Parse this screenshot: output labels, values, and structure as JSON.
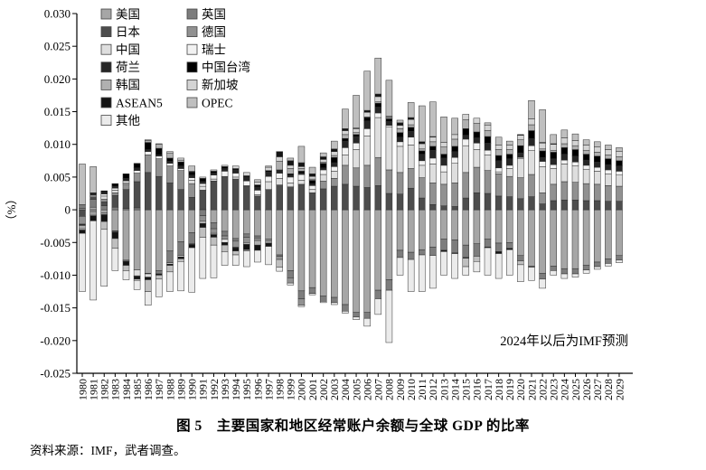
{
  "figure": {
    "title": "图 5　主要国家和地区经常账户余额与全球 GDP 的比率",
    "source": "资料来源：IMF，武者调查。"
  },
  "chart_data": {
    "type": "bar",
    "stacked": true,
    "title": "图 5　主要国家和地区经常账户余额与全球 GDP 的比率",
    "xlabel": "",
    "ylabel": "（%）",
    "ylim": [
      -0.025,
      0.03
    ],
    "ytick_labels": [
      "0.030",
      "0.025",
      "0.020",
      "0.015",
      "0.010",
      "0.005",
      "0",
      "-0.005",
      "-0.010",
      "-0.015",
      "-0.020",
      "-0.025"
    ],
    "grid": false,
    "legend_position": "upper-left two-column",
    "annotation": "2024年以后为IMF预测",
    "unit": "ratio of current account balance to world GDP",
    "value_scale": 0.0001,
    "x": [
      "1980",
      "1981",
      "1982",
      "1983",
      "1984",
      "1985",
      "1986",
      "1987",
      "1988",
      "1989",
      "1990",
      "1991",
      "1992",
      "1993",
      "1994",
      "1995",
      "1996",
      "1997",
      "1998",
      "1999",
      "2000",
      "2001",
      "2002",
      "2003",
      "2004",
      "2005",
      "2006",
      "2007",
      "2008",
      "2009",
      "2010",
      "2011",
      "2012",
      "2013",
      "2014",
      "2015",
      "2016",
      "2017",
      "2018",
      "2019",
      "2020",
      "2021",
      "2022",
      "2023",
      "2024",
      "2025",
      "2026",
      "2027",
      "2028",
      "2029"
    ],
    "series": [
      {
        "name": "美国",
        "color": "#a6a6a6",
        "values": [
          2,
          4,
          -5,
          -32,
          -77,
          -92,
          -97,
          -93,
          -63,
          -49,
          -35,
          1,
          -20,
          -33,
          -44,
          -37,
          -40,
          -45,
          -69,
          -93,
          -124,
          -119,
          -132,
          -134,
          -145,
          -157,
          -157,
          -123,
          -107,
          -62,
          -65,
          -61,
          -57,
          -45,
          -46,
          -54,
          -52,
          -45,
          -51,
          -50,
          -70,
          -86,
          -97,
          -86,
          -90,
          -90,
          -85,
          -80,
          -75,
          -70
        ]
      },
      {
        "name": "英国",
        "color": "#7d7d7d",
        "values": [
          6,
          12,
          6,
          4,
          2,
          3,
          -1,
          -5,
          -18,
          -21,
          -17,
          -9,
          -9,
          -7,
          -4,
          -5,
          -3,
          0,
          -2,
          -11,
          -12,
          -9,
          -8,
          -8,
          -10,
          -7,
          -9,
          -13,
          -16,
          -11,
          -11,
          -8,
          -13,
          -17,
          -20,
          -19,
          -19,
          -12,
          -13,
          -9,
          -8,
          -2,
          -9,
          -7,
          -8,
          -8,
          -7,
          -7,
          -7,
          -7
        ]
      },
      {
        "name": "日本",
        "color": "#4d4d4d",
        "values": [
          -10,
          4,
          6,
          18,
          29,
          40,
          57,
          51,
          41,
          31,
          19,
          29,
          44,
          51,
          47,
          36,
          21,
          31,
          38,
          35,
          39,
          26,
          32,
          36,
          39,
          36,
          34,
          37,
          25,
          24,
          33,
          18,
          8,
          6,
          5,
          18,
          26,
          25,
          21,
          20,
          17,
          20,
          9,
          14,
          15,
          15,
          14,
          14,
          13,
          13
        ]
      },
      {
        "name": "德国",
        "color": "#919191",
        "values": [
          -12,
          -3,
          4,
          4,
          8,
          13,
          27,
          27,
          26,
          29,
          21,
          -8,
          -7,
          -5,
          -9,
          -8,
          -4,
          -3,
          -5,
          -8,
          -10,
          0,
          12,
          12,
          29,
          28,
          34,
          43,
          36,
          33,
          30,
          31,
          33,
          33,
          36,
          39,
          39,
          35,
          34,
          31,
          32,
          34,
          17,
          25,
          28,
          27,
          26,
          25,
          24,
          23
        ]
      },
      {
        "name": "中国",
        "color": "#dedede",
        "values": [
          0,
          0,
          5,
          4,
          2,
          -9,
          -5,
          0,
          -2,
          -2,
          5,
          6,
          3,
          -5,
          3,
          1,
          2,
          12,
          10,
          6,
          6,
          5,
          10,
          11,
          16,
          28,
          45,
          61,
          66,
          40,
          36,
          19,
          29,
          19,
          30,
          41,
          27,
          24,
          3,
          12,
          29,
          37,
          40,
          24,
          27,
          25,
          22,
          20,
          18,
          17
        ]
      },
      {
        "name": "瑞士",
        "color": "#f2f2f2",
        "values": [
          0,
          2,
          3,
          3,
          3,
          4,
          5,
          4,
          4,
          3,
          4,
          4,
          6,
          8,
          6,
          7,
          7,
          8,
          8,
          9,
          9,
          6,
          7,
          7,
          11,
          10,
          11,
          7,
          2,
          7,
          12,
          7,
          9,
          10,
          9,
          10,
          10,
          7,
          6,
          5,
          2,
          7,
          8,
          6,
          6,
          6,
          6,
          6,
          6,
          6
        ]
      },
      {
        "name": "荷兰",
        "color": "#262626",
        "values": [
          -1,
          3,
          3,
          3,
          4,
          4,
          3,
          2,
          3,
          4,
          4,
          3,
          3,
          4,
          5,
          6,
          5,
          7,
          4,
          3,
          2,
          3,
          3,
          6,
          10,
          10,
          12,
          9,
          6,
          7,
          9,
          10,
          12,
          11,
          9,
          6,
          8,
          11,
          11,
          10,
          7,
          11,
          6,
          9,
          9,
          9,
          8,
          8,
          8,
          8
        ]
      },
      {
        "name": "中国台湾",
        "color": "#000000",
        "values": [
          -1,
          1,
          2,
          4,
          7,
          7,
          11,
          10,
          5,
          6,
          5,
          5,
          3,
          3,
          2,
          2,
          3,
          2,
          1,
          2,
          3,
          5,
          7,
          8,
          4,
          3,
          5,
          6,
          4,
          7,
          6,
          5,
          6,
          6,
          8,
          10,
          9,
          10,
          8,
          7,
          11,
          12,
          10,
          10,
          10,
          10,
          9,
          9,
          9,
          8
        ]
      },
      {
        "name": "韩国",
        "color": "#b0b0b0",
        "values": [
          -5,
          -4,
          -2,
          -1,
          -1,
          -1,
          3,
          6,
          8,
          3,
          -1,
          -4,
          -2,
          0,
          -1,
          -3,
          -7,
          -3,
          13,
          8,
          4,
          2,
          2,
          3,
          6,
          3,
          1,
          2,
          1,
          6,
          4,
          3,
          7,
          11,
          11,
          14,
          13,
          9,
          9,
          7,
          9,
          9,
          3,
          3,
          6,
          6,
          6,
          6,
          6,
          6
        ]
      },
      {
        "name": "新加坡",
        "color": "#d4d4d4",
        "values": [
          -2,
          -2,
          -1,
          -1,
          -1,
          0,
          1,
          1,
          2,
          3,
          1,
          2,
          2,
          2,
          4,
          5,
          4,
          5,
          7,
          5,
          3,
          4,
          4,
          6,
          6,
          6,
          7,
          8,
          2,
          5,
          8,
          8,
          7,
          7,
          7,
          8,
          8,
          8,
          7,
          7,
          7,
          9,
          9,
          9,
          9,
          8,
          8,
          8,
          8,
          8
        ]
      },
      {
        "name": "ASEAN5",
        "color": "#141414",
        "values": [
          -5,
          -8,
          -10,
          -10,
          -6,
          -4,
          -4,
          -2,
          -2,
          -3,
          -5,
          -6,
          -4,
          -4,
          -5,
          -8,
          -8,
          -5,
          8,
          7,
          6,
          4,
          4,
          4,
          3,
          1,
          3,
          4,
          1,
          4,
          3,
          3,
          1,
          -2,
          -1,
          -1,
          0,
          -1,
          -3,
          -2,
          1,
          0,
          1,
          1,
          0,
          0,
          0,
          0,
          0,
          0
        ]
      },
      {
        "name": "OPEC",
        "color": "#bfbfbf",
        "values": [
          62,
          40,
          -12,
          -15,
          -8,
          -2,
          -18,
          -6,
          -10,
          -4,
          8,
          -15,
          -12,
          -10,
          -6,
          -2,
          4,
          2,
          -12,
          4,
          25,
          10,
          6,
          12,
          30,
          50,
          60,
          55,
          55,
          4,
          23,
          55,
          53,
          39,
          25,
          -13,
          -8,
          4,
          12,
          6,
          -6,
          28,
          50,
          14,
          12,
          10,
          8,
          8,
          7,
          6
        ]
      },
      {
        "name": "其他",
        "color": "#ebebeb",
        "values": [
          -89,
          -121,
          -87,
          -34,
          -14,
          -14,
          -21,
          -27,
          -30,
          -45,
          -68,
          -63,
          -50,
          -21,
          -16,
          -24,
          -18,
          -28,
          -6,
          -3,
          -2,
          -2,
          -2,
          -3,
          -3,
          -4,
          -12,
          -24,
          -80,
          -27,
          -49,
          -56,
          -50,
          -36,
          -38,
          -13,
          -16,
          -42,
          -38,
          -39,
          -26,
          -20,
          -14,
          -7,
          -7,
          -5,
          -5,
          -4,
          -4,
          -4
        ]
      }
    ]
  }
}
